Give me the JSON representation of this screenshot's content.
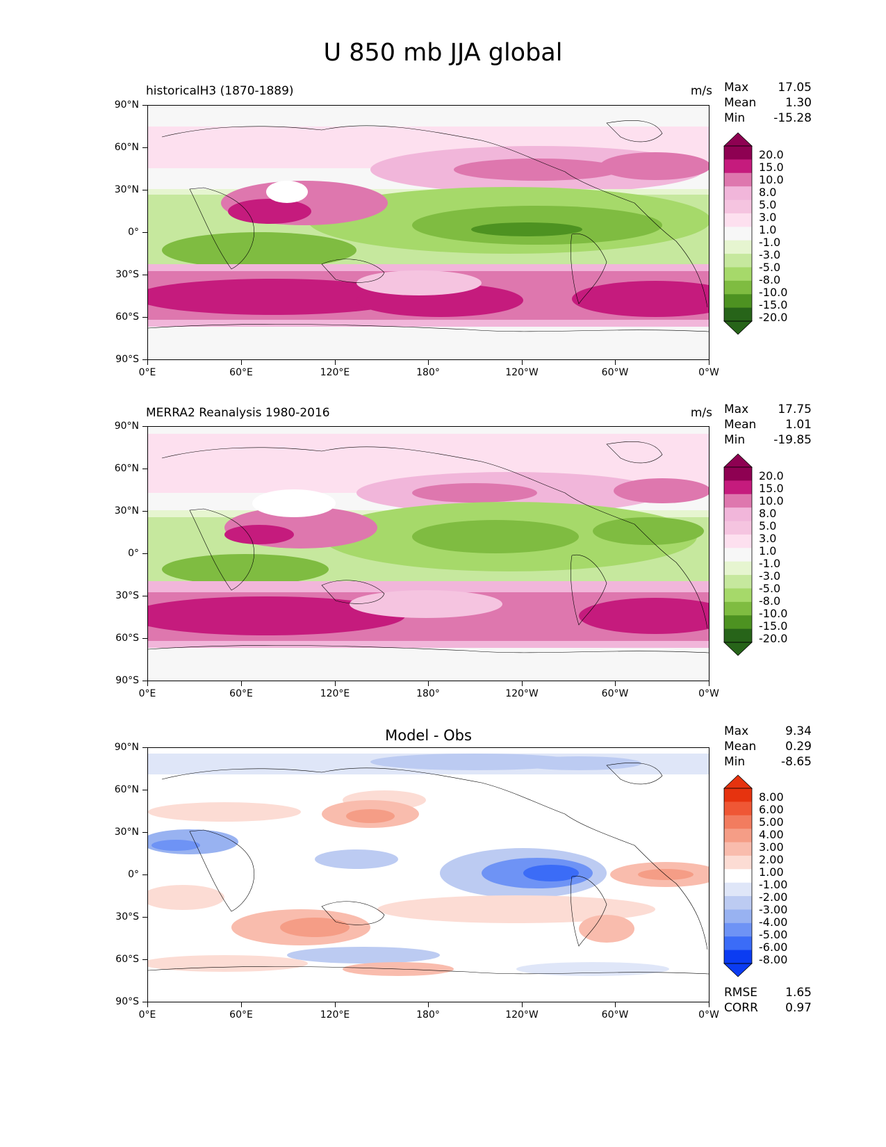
{
  "figure": {
    "title": "U 850 mb JJA global"
  },
  "axes": {
    "lat_ticks": [
      "90°N",
      "60°N",
      "30°N",
      "0°",
      "30°S",
      "60°S",
      "90°S"
    ],
    "lon_ticks": [
      "0°E",
      "60°E",
      "120°E",
      "180°",
      "120°W",
      "60°W",
      "0°W"
    ]
  },
  "colors": {
    "prgn": [
      "#276419",
      "#4d9221",
      "#7fbc41",
      "#a6d96a",
      "#c6e89e",
      "#e6f5d0",
      "#f7f7f7",
      "#fde0ef",
      "#f5c4e0",
      "#f1b6da",
      "#de77ae",
      "#c51b7d",
      "#8e0152"
    ],
    "diff": [
      "#0b3cf2",
      "#3b6cf7",
      "#6e93f5",
      "#98b2f1",
      "#bccbf2",
      "#dfe6f8",
      "#ffffff",
      "#fcdcd4",
      "#f9bcad",
      "#f59d86",
      "#f27c5f",
      "#ef5735",
      "#e6330f"
    ],
    "coast": "#000000"
  },
  "panels": [
    {
      "title": "historicalH3 (1870-1889)",
      "units": "m/s",
      "stats": {
        "max_label": "Max",
        "max": "17.05",
        "mean_label": "Mean",
        "mean": "1.30",
        "min_label": "Min",
        "min": "-15.28"
      },
      "colorbar": {
        "palette": "prgn",
        "labels": [
          "20.0",
          "15.0",
          "10.0",
          "8.0",
          "5.0",
          "3.0",
          "1.0",
          "-1.0",
          "-3.0",
          "-5.0",
          "-8.0",
          "-10.0",
          "-15.0",
          "-20.0"
        ]
      }
    },
    {
      "title": "MERRA2 Reanalysis 1980-2016",
      "units": "m/s",
      "stats": {
        "max_label": "Max",
        "max": "17.75",
        "mean_label": "Mean",
        "mean": "1.01",
        "min_label": "Min",
        "min": "-19.85"
      },
      "colorbar": {
        "palette": "prgn",
        "labels": [
          "20.0",
          "15.0",
          "10.0",
          "8.0",
          "5.0",
          "3.0",
          "1.0",
          "-1.0",
          "-3.0",
          "-5.0",
          "-8.0",
          "-10.0",
          "-15.0",
          "-20.0"
        ]
      }
    },
    {
      "title": "Model - Obs",
      "units": "",
      "stats": {
        "max_label": "Max",
        "max": "9.34",
        "mean_label": "Mean",
        "mean": "0.29",
        "min_label": "Min",
        "min": "-8.65"
      },
      "colorbar": {
        "palette": "diff",
        "labels": [
          "8.00",
          "6.00",
          "5.00",
          "4.00",
          "3.00",
          "2.00",
          "1.00",
          "-1.00",
          "-2.00",
          "-3.00",
          "-4.00",
          "-5.00",
          "-6.00",
          "-8.00"
        ]
      },
      "rmse_label": "RMSE",
      "rmse": "1.65",
      "corr_label": "CORR",
      "corr": "0.97"
    }
  ]
}
